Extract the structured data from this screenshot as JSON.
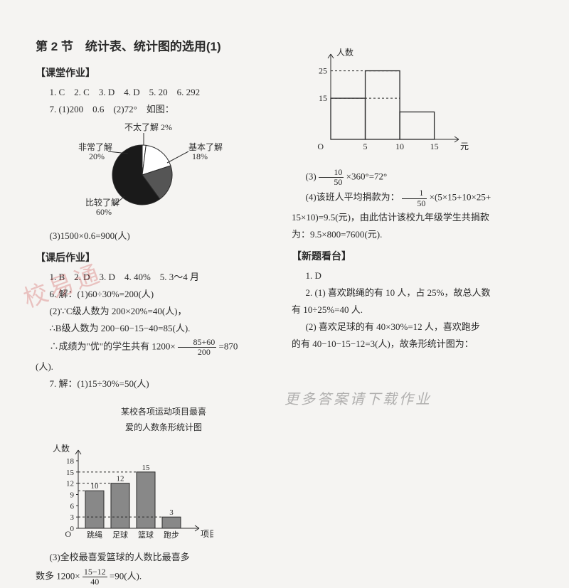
{
  "title": "第 2 节　统计表、统计图的选用(1)",
  "sec1": "【课堂作业】",
  "answers1": "1. C　2. C　3. D　4. D　5. 20　6. 292",
  "q7": "7. (1)200　0.6　(2)72°　如图：",
  "pie": {
    "labels": {
      "a": "不太了解 2%",
      "b": "非常了解",
      "b_pct": "20%",
      "c": "基本了解",
      "c_pct": "18%",
      "d": "比较了解",
      "d_pct": "60%"
    },
    "slices": [
      {
        "start": -90,
        "end": -82.8,
        "fill": "#ffffff"
      },
      {
        "start": -82.8,
        "end": -18,
        "fill": "#ffffff"
      },
      {
        "start": -18,
        "end": 54,
        "fill": "#555555"
      },
      {
        "start": 54,
        "end": 270,
        "fill": "#1a1a1a"
      }
    ],
    "colors": {
      "stroke": "#2a2a2a"
    }
  },
  "q7_3": "(3)1500×0.6=900(人)",
  "sec2": "【课后作业】",
  "answers2": "1. B　2. D　3. D　4. 40%　5. 3～4 月",
  "q6_1": "6. 解：(1)60÷30%=200(人)",
  "q6_2": "(2)∵C级人数为 200×20%=40(人)，",
  "q6_3": "∴B级人数为 200−60−15−40=85(人).",
  "q6_4pre": "∴成绩为\"优\"的学生共有 1200×",
  "q6_4frac_num": "85+60",
  "q6_4frac_den": "200",
  "q6_4post": "=870",
  "q6_5": "(人).",
  "q7b": "7. 解：(1)15÷30%=50(人)",
  "barTitle1": "某校各项运动项目最喜",
  "barTitle2": "爱的人数条形统计图",
  "barYLabel": "人数",
  "barXLabel": "项目",
  "bar1": {
    "yticks": [
      0,
      3,
      6,
      9,
      12,
      15,
      18
    ],
    "cats": [
      "跳绳",
      "足球",
      "篮球",
      "跑步"
    ],
    "values": [
      10,
      12,
      15,
      3
    ],
    "color": "#888888",
    "axis": "#2a2a2a"
  },
  "q7b_3pre": "(3)全校最喜爱篮球的人数比最喜多",
  "q7b_3line2pre": "数多 1200×",
  "q7b_3frac_num": "15−12",
  "q7b_3frac_den": "40",
  "q7b_3post": "=90(人).",
  "rightTop": {
    "xlabel": "元",
    "ylabel": "人数",
    "xticks": [
      5,
      10,
      15
    ],
    "yticks": [
      15,
      25
    ],
    "bars": [
      {
        "x": 0,
        "w": 5,
        "h": 15
      },
      {
        "x": 5,
        "w": 5,
        "h": 25
      },
      {
        "x": 10,
        "w": 5,
        "h": 10
      }
    ],
    "axis": "#2a2a2a"
  },
  "r_q3pre": "(3)",
  "r_q3frac_num": "10",
  "r_q3frac_den": "50",
  "r_q3post": "×360°=72°",
  "r_q4pre": "(4)该班人平均捐款为：",
  "r_q4frac_num": "1",
  "r_q4frac_den": "50",
  "r_q4post": "×(5×15+10×25+",
  "r_q4_2": "15×10)=9.5(元)，由此估计该校九年级学生共捐款",
  "r_q4_3": "为：9.5×800=7600(元).",
  "sec3": "【新题看台】",
  "r_a1": "1. D",
  "r_a2": "2. (1) 喜欢跳绳的有 10 人，占 25%，故总人数",
  "r_a2b": "有 10÷25%=40 人.",
  "r_a3": "(2) 喜欢足球的有 40×30%=12 人，喜欢跑步",
  "r_a3b": "的有 40−10−15−12=3(人)，故条形统计图为：",
  "wm1": "校易通",
  "wm2": "更多答案请下载作业",
  "origin": "O"
}
